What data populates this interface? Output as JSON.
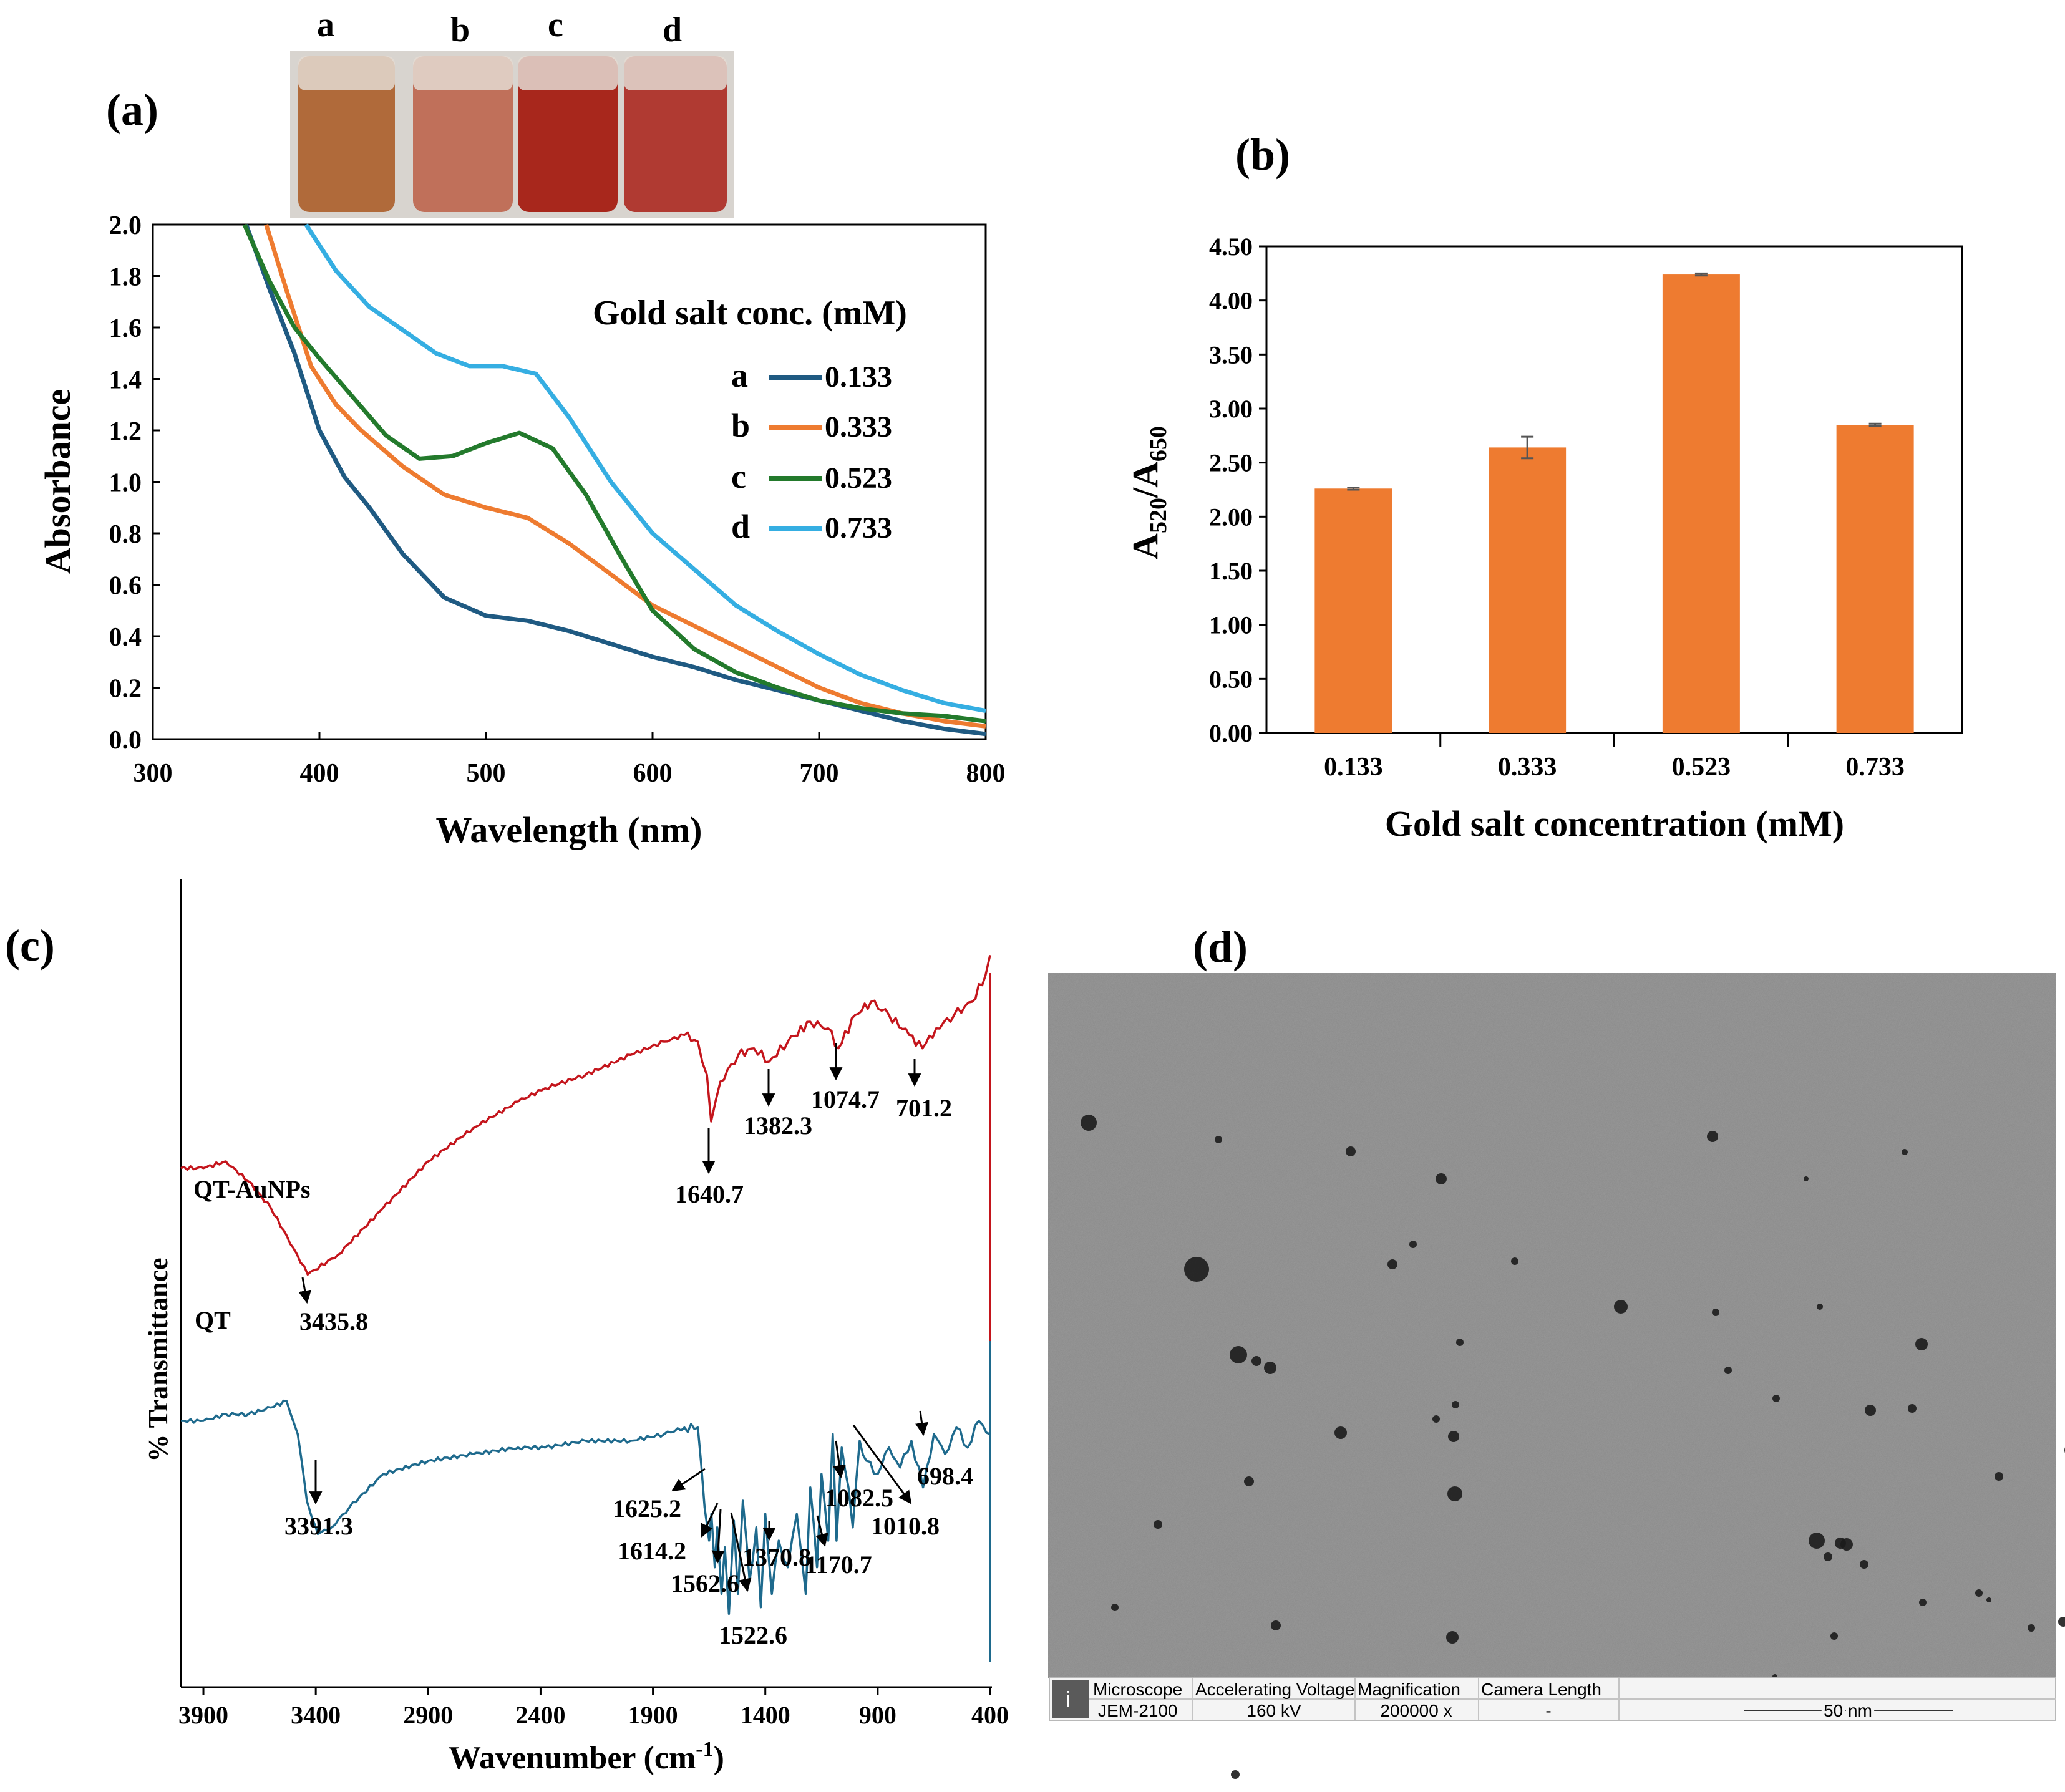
{
  "chart_data": [
    {
      "panel": "(a)",
      "type": "line",
      "title": "",
      "xlabel": "Wavelength (nm)",
      "ylabel": "Absorbance",
      "xlim": [
        300,
        800
      ],
      "ylim": [
        0,
        2.0
      ],
      "xticks": [
        "300",
        "400",
        "500",
        "600",
        "700",
        "800"
      ],
      "yticks": [
        "0.0",
        "0.2",
        "0.4",
        "0.6",
        "0.8",
        "1.0",
        "1.2",
        "1.4",
        "1.6",
        "1.8",
        "2.0"
      ],
      "legend_title": "Gold salt conc. (mM)",
      "vial_labels": [
        "a",
        "b",
        "c",
        "d"
      ],
      "series": [
        {
          "name": "a",
          "label": "0.133",
          "color": "#1f5a82",
          "x": [
            356,
            370,
            385,
            400,
            415,
            430,
            450,
            475,
            500,
            525,
            550,
            575,
            600,
            625,
            650,
            675,
            700,
            725,
            750,
            775,
            800
          ],
          "y": [
            2.0,
            1.75,
            1.5,
            1.2,
            1.02,
            0.9,
            0.72,
            0.55,
            0.48,
            0.46,
            0.42,
            0.37,
            0.32,
            0.28,
            0.23,
            0.19,
            0.15,
            0.11,
            0.07,
            0.04,
            0.02
          ]
        },
        {
          "name": "b",
          "label": "0.333",
          "color": "#ee7b30",
          "x": [
            368,
            380,
            395,
            410,
            425,
            450,
            475,
            500,
            525,
            550,
            575,
            600,
            625,
            650,
            675,
            700,
            725,
            750,
            775,
            800
          ],
          "y": [
            2.0,
            1.75,
            1.45,
            1.3,
            1.2,
            1.06,
            0.95,
            0.9,
            0.86,
            0.76,
            0.64,
            0.52,
            0.44,
            0.36,
            0.28,
            0.2,
            0.14,
            0.1,
            0.07,
            0.05
          ]
        },
        {
          "name": "c",
          "label": "0.523",
          "color": "#237a2c",
          "x": [
            355,
            370,
            385,
            400,
            420,
            440,
            460,
            480,
            500,
            520,
            540,
            560,
            580,
            600,
            625,
            650,
            675,
            700,
            725,
            750,
            775,
            800
          ],
          "y": [
            2.0,
            1.78,
            1.6,
            1.48,
            1.33,
            1.18,
            1.09,
            1.1,
            1.15,
            1.19,
            1.13,
            0.95,
            0.72,
            0.5,
            0.35,
            0.26,
            0.2,
            0.15,
            0.12,
            0.1,
            0.09,
            0.07
          ]
        },
        {
          "name": "d",
          "label": "0.733",
          "color": "#35aee2",
          "x": [
            392,
            410,
            430,
            450,
            470,
            490,
            510,
            530,
            550,
            575,
            600,
            625,
            650,
            675,
            700,
            725,
            750,
            775,
            800
          ],
          "y": [
            2.0,
            1.82,
            1.68,
            1.59,
            1.5,
            1.45,
            1.45,
            1.42,
            1.25,
            1.0,
            0.8,
            0.66,
            0.52,
            0.42,
            0.33,
            0.25,
            0.19,
            0.14,
            0.11
          ]
        }
      ]
    },
    {
      "panel": "(b)",
      "type": "bar",
      "title": "",
      "xlabel": "Gold salt concentration (mM)",
      "ylabel": "A520/A650",
      "ylabel_main": "A",
      "ylabel_sub1": "520",
      "ylabel_sep": "/A",
      "ylabel_sub2": "650",
      "categories": [
        "0.133",
        "0.333",
        "0.523",
        "0.733"
      ],
      "values": [
        2.26,
        2.64,
        4.24,
        2.85
      ],
      "errors": [
        0.01,
        0.1,
        0.01,
        0.01
      ],
      "ylim": [
        0,
        4.5
      ],
      "yticks": [
        "0.00",
        "0.50",
        "1.00",
        "1.50",
        "2.00",
        "2.50",
        "3.00",
        "3.50",
        "4.00",
        "4.50"
      ],
      "color": "#ee7b30"
    },
    {
      "panel": "(c)",
      "type": "line",
      "title": "",
      "xlabel": "Wavenumber (cm",
      "xlabel_sup": "-1",
      "xlabel_end": ")",
      "ylabel": "% Transmittance",
      "xlim": [
        4000,
        400
      ],
      "xticks": [
        "3900",
        "3400",
        "2900",
        "2400",
        "1900",
        "1400",
        "900",
        "400"
      ],
      "series": [
        {
          "name": "QT-AuNPs",
          "color": "#c4151c",
          "x": [
            4000,
            3900,
            3800,
            3700,
            3600,
            3500,
            3436,
            3300,
            3100,
            2900,
            2700,
            2500,
            2380,
            2200,
            2000,
            1850,
            1760,
            1700,
            1660,
            1641,
            1600,
            1520,
            1450,
            1383,
            1300,
            1200,
            1120,
            1075,
            1000,
            930,
            850,
            760,
            701,
            640,
            560,
            480,
            420,
            400
          ],
          "y": [
            0.86,
            0.86,
            0.87,
            0.84,
            0.8,
            0.74,
            0.7,
            0.73,
            0.8,
            0.87,
            0.92,
            0.96,
            0.98,
            1.0,
            1.03,
            1.05,
            1.06,
            1.05,
            1.0,
            0.93,
            0.99,
            1.03,
            1.04,
            1.02,
            1.05,
            1.08,
            1.07,
            1.04,
            1.09,
            1.11,
            1.09,
            1.06,
            1.04,
            1.07,
            1.09,
            1.11,
            1.15,
            1.18
          ]
        },
        {
          "name": "QT",
          "color": "#1e6a8d",
          "x": [
            4000,
            3900,
            3800,
            3700,
            3600,
            3530,
            3480,
            3440,
            3400,
            3391,
            3330,
            3250,
            3100,
            2900,
            2700,
            2500,
            2380,
            2200,
            2000,
            1850,
            1760,
            1700,
            1670,
            1650,
            1640,
            1625,
            1614,
            1595,
            1580,
            1562,
            1540,
            1522,
            1500,
            1470,
            1440,
            1420,
            1400,
            1371,
            1340,
            1300,
            1260,
            1220,
            1200,
            1170,
            1150,
            1120,
            1100,
            1083,
            1060,
            1030,
            1011,
            980,
            950,
            900,
            850,
            800,
            750,
            698,
            650,
            600,
            550,
            500,
            450,
            400
          ],
          "y": [
            0.48,
            0.48,
            0.49,
            0.49,
            0.5,
            0.51,
            0.46,
            0.36,
            0.32,
            0.31,
            0.32,
            0.35,
            0.4,
            0.42,
            0.43,
            0.44,
            0.44,
            0.45,
            0.45,
            0.46,
            0.47,
            0.47,
            0.35,
            0.3,
            0.34,
            0.26,
            0.32,
            0.22,
            0.29,
            0.19,
            0.33,
            0.22,
            0.36,
            0.24,
            0.32,
            0.2,
            0.34,
            0.22,
            0.3,
            0.26,
            0.34,
            0.22,
            0.38,
            0.26,
            0.4,
            0.3,
            0.46,
            0.3,
            0.44,
            0.38,
            0.32,
            0.45,
            0.42,
            0.4,
            0.44,
            0.41,
            0.45,
            0.38,
            0.46,
            0.43,
            0.47,
            0.44,
            0.48,
            0.46
          ]
        }
      ],
      "annotations": {
        "qtau": [
          "3435.8",
          "1640.7",
          "1382.3",
          "1074.7",
          "701.2"
        ],
        "qt": [
          "3391.3",
          "1625.2",
          "1614.2",
          "1562.6",
          "1522.6",
          "1370.8",
          "1170.7",
          "1082.5",
          "1010.8",
          "698.4"
        ]
      }
    }
  ],
  "panel_labels": {
    "a": "(a)",
    "b": "(b)",
    "c": "(c)",
    "d": "(d)"
  },
  "tem": {
    "headers": [
      "Microscope",
      "Accelerating Voltage",
      "Magnification",
      "Camera Length",
      ""
    ],
    "values": [
      "JEM-2100",
      "160 kV",
      "200000 x",
      "-",
      ""
    ],
    "scale_bar": "50 nm"
  }
}
